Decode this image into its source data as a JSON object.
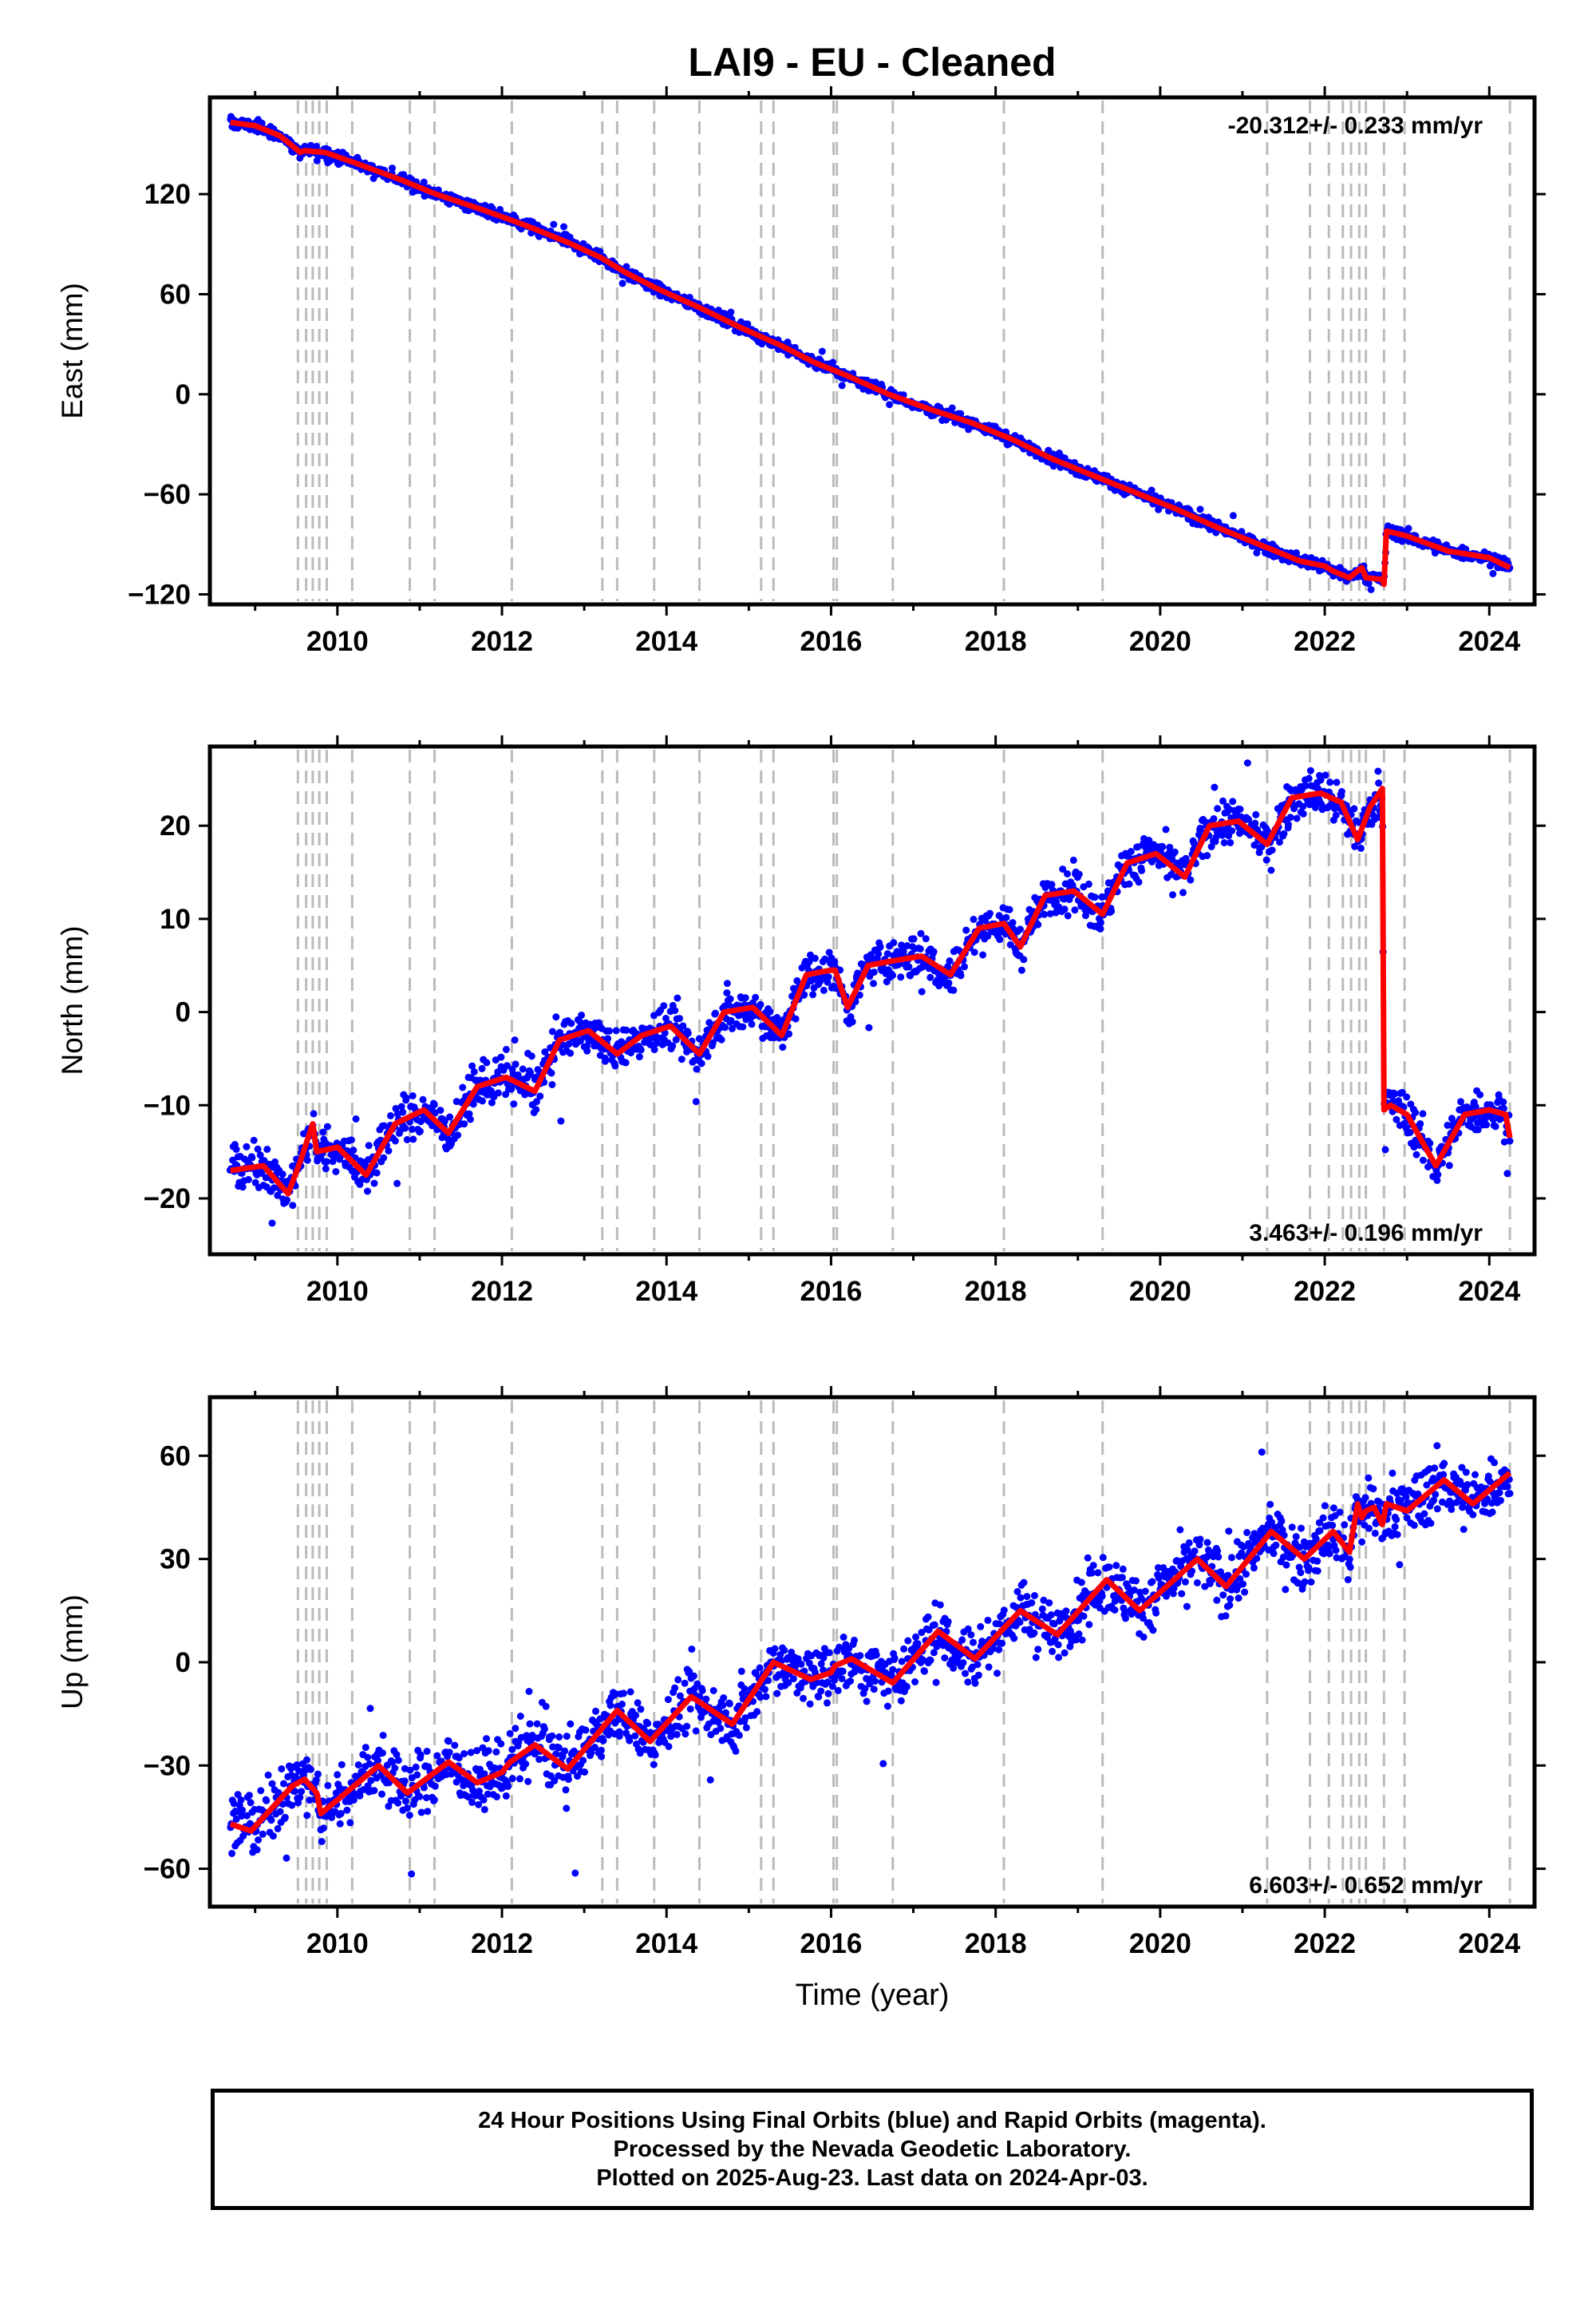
{
  "title": "LAI9  - EU - Cleaned",
  "xlabel": "Time (year)",
  "footer": {
    "line1": "24 Hour Positions Using Final Orbits (blue) and Rapid Orbits (magenta).",
    "line2": "Processed by the Nevada Geodetic Laboratory.",
    "line3": "Plotted on 2025-Aug-23. Last data on 2024-Apr-03."
  },
  "colors": {
    "data": "#0000ff",
    "model": "#ff0000",
    "events": "#bbbbbb",
    "frame": "#000000"
  },
  "chart_data": [
    {
      "type": "scatter",
      "id": "east",
      "ylabel": "East (mm)",
      "rate_label": "-20.312+/- 0.233 mm/yr",
      "rate_position": "top-right",
      "xlim": [
        2008.45,
        2024.55
      ],
      "ylim": [
        -126,
        178
      ],
      "xticks": [
        "2010",
        "2012",
        "2014",
        "2016",
        "2018",
        "2020",
        "2022",
        "2024"
      ],
      "yticks": [
        "120",
        "60",
        "0",
        "−60",
        "−120"
      ],
      "ytick_values": [
        120,
        60,
        0,
        -60,
        -120
      ],
      "series": [
        {
          "role": "data",
          "noise": 2.5,
          "x": [
            2008.7,
            2009.0,
            2009.3,
            2009.55,
            2009.6,
            2009.85,
            2010.2,
            2010.8,
            2011.2,
            2011.8,
            2012.3,
            2012.8,
            2013.2,
            2013.5,
            2013.9,
            2014.4,
            2014.9,
            2015.4,
            2015.8,
            2016.2,
            2016.7,
            2017.2,
            2017.7,
            2018.2,
            2018.7,
            2019.2,
            2019.7,
            2020.2,
            2020.7,
            2021.2,
            2021.7,
            2022.0,
            2022.1,
            2022.3,
            2022.45,
            2022.5,
            2022.7,
            2022.72,
            2022.75,
            2023.0,
            2023.5,
            2024.0,
            2024.25
          ],
          "y": [
            163,
            161,
            155,
            145,
            146,
            145,
            139,
            128,
            120,
            110,
            101,
            91,
            82,
            73,
            63,
            52,
            40,
            29,
            19,
            11,
            0,
            -9,
            -17,
            -27,
            -39,
            -49,
            -59,
            -69,
            -80,
            -90,
            -100,
            -103,
            -106,
            -110,
            -104,
            -110,
            -111,
            -114,
            -82,
            -85,
            -94,
            -98,
            -104
          ]
        }
      ],
      "model": {
        "x": [
          2008.7,
          2009.0,
          2009.3,
          2009.55,
          2009.6,
          2009.85,
          2010.2,
          2010.8,
          2011.2,
          2011.8,
          2012.3,
          2012.8,
          2013.2,
          2013.5,
          2013.9,
          2014.4,
          2014.9,
          2015.4,
          2015.8,
          2016.2,
          2016.7,
          2017.2,
          2017.7,
          2018.2,
          2018.7,
          2019.2,
          2019.7,
          2020.2,
          2020.7,
          2021.2,
          2021.7,
          2022.0,
          2022.1,
          2022.3,
          2022.45,
          2022.5,
          2022.7,
          2022.72,
          2022.75,
          2023.0,
          2023.5,
          2024.0,
          2024.25
        ],
        "y": [
          163,
          161,
          155,
          145,
          146,
          145,
          139,
          128,
          120,
          110,
          101,
          91,
          82,
          73,
          63,
          52,
          40,
          29,
          19,
          11,
          0,
          -9,
          -17,
          -27,
          -39,
          -49,
          -59,
          -69,
          -80,
          -90,
          -100,
          -103,
          -106,
          -110,
          -104,
          -110,
          -111,
          -114,
          -82,
          -85,
          -94,
          -98,
          -104
        ]
      }
    },
    {
      "type": "scatter",
      "id": "north",
      "ylabel": "North (mm)",
      "rate_label": "3.463+/- 0.196 mm/yr",
      "rate_position": "bottom-right",
      "xlim": [
        2008.45,
        2024.55
      ],
      "ylim": [
        -26,
        28.5
      ],
      "xticks": [
        "2010",
        "2012",
        "2014",
        "2016",
        "2018",
        "2020",
        "2022",
        "2024"
      ],
      "yticks": [
        "20",
        "10",
        "0",
        "−10",
        "−20"
      ],
      "ytick_values": [
        20,
        10,
        0,
        -10,
        -20
      ],
      "series": [
        {
          "role": "data",
          "noise": 1.6,
          "x": [
            2008.7,
            2009.1,
            2009.4,
            2009.55,
            2009.7,
            2009.75,
            2010.0,
            2010.35,
            2010.7,
            2011.05,
            2011.35,
            2011.7,
            2012.05,
            2012.4,
            2012.7,
            2013.05,
            2013.4,
            2013.7,
            2014.05,
            2014.4,
            2014.7,
            2015.05,
            2015.4,
            2015.7,
            2016.0,
            2016.05,
            2016.2,
            2016.45,
            2016.75,
            2017.1,
            2017.45,
            2017.8,
            2018.1,
            2018.3,
            2018.6,
            2018.95,
            2019.3,
            2019.6,
            2019.95,
            2020.3,
            2020.6,
            2020.95,
            2021.3,
            2021.6,
            2021.95,
            2022.2,
            2022.4,
            2022.55,
            2022.7,
            2022.72,
            2022.8,
            2023.0,
            2023.35,
            2023.7,
            2024.0,
            2024.2,
            2024.25
          ],
          "y": [
            -17,
            -16.5,
            -19.5,
            -16,
            -12,
            -15,
            -14.5,
            -17.5,
            -12,
            -10.5,
            -13,
            -8,
            -7,
            -8.5,
            -3,
            -2,
            -4.5,
            -2.5,
            -1.5,
            -4.5,
            0,
            0.5,
            -2.5,
            4,
            4.5,
            4.5,
            0.5,
            5,
            5.5,
            6,
            4,
            9,
            9.5,
            7,
            12.5,
            13,
            10.5,
            16,
            17,
            14.5,
            20,
            20.5,
            18,
            23,
            23.5,
            22.5,
            18.5,
            22,
            24,
            -10.5,
            -10,
            -11,
            -16.5,
            -11,
            -10.5,
            -11,
            -13.5
          ]
        }
      ],
      "model": {
        "x": [
          2008.7,
          2009.1,
          2009.4,
          2009.55,
          2009.7,
          2009.75,
          2010.0,
          2010.35,
          2010.7,
          2011.05,
          2011.35,
          2011.7,
          2012.05,
          2012.4,
          2012.7,
          2013.05,
          2013.4,
          2013.7,
          2014.05,
          2014.4,
          2014.7,
          2015.05,
          2015.4,
          2015.7,
          2016.0,
          2016.05,
          2016.2,
          2016.45,
          2016.75,
          2017.1,
          2017.45,
          2017.8,
          2018.1,
          2018.3,
          2018.6,
          2018.95,
          2019.3,
          2019.6,
          2019.95,
          2020.3,
          2020.6,
          2020.95,
          2021.3,
          2021.6,
          2021.95,
          2022.2,
          2022.4,
          2022.55,
          2022.7,
          2022.72,
          2022.8,
          2023.0,
          2023.35,
          2023.7,
          2024.0,
          2024.2,
          2024.25
        ],
        "y": [
          -17,
          -16.5,
          -19.5,
          -16,
          -12,
          -15,
          -14.5,
          -17.5,
          -12,
          -10.5,
          -13,
          -8,
          -7,
          -8.5,
          -3,
          -2,
          -4.5,
          -2.5,
          -1.5,
          -4.5,
          0,
          0.5,
          -2.5,
          4,
          4.5,
          4.5,
          0.5,
          5,
          5.5,
          6,
          4,
          9,
          9.5,
          7,
          12.5,
          13,
          10.5,
          16,
          17,
          14.5,
          20,
          20.5,
          18,
          23,
          23.5,
          22.5,
          18.5,
          22,
          24,
          -10.5,
          -10,
          -11,
          -16.5,
          -11,
          -10.5,
          -11,
          -13.5
        ]
      }
    },
    {
      "type": "scatter",
      "id": "up",
      "ylabel": "Up (mm)",
      "rate_label": "6.603+/- 0.652 mm/yr",
      "rate_position": "bottom-right",
      "xlim": [
        2008.45,
        2024.55
      ],
      "ylim": [
        -71,
        77
      ],
      "xticks": [
        "2010",
        "2012",
        "2014",
        "2016",
        "2018",
        "2020",
        "2022",
        "2024"
      ],
      "yticks": [
        "60",
        "30",
        "0",
        "−30",
        "−60"
      ],
      "ytick_values": [
        60,
        30,
        0,
        -30,
        -60
      ],
      "series": [
        {
          "role": "data",
          "noise": 6,
          "x": [
            2008.7,
            2008.95,
            2009.45,
            2009.6,
            2009.75,
            2009.8,
            2010.05,
            2010.5,
            2010.85,
            2011.35,
            2011.7,
            2012.0,
            2012.1,
            2012.4,
            2012.8,
            2013.4,
            2013.8,
            2014.3,
            2014.8,
            2015.3,
            2015.75,
            2016.0,
            2016.05,
            2016.25,
            2016.75,
            2017.3,
            2017.75,
            2018.3,
            2018.75,
            2019.35,
            2019.75,
            2020.45,
            2020.8,
            2021.35,
            2021.75,
            2022.1,
            2022.3,
            2022.4,
            2022.45,
            2022.5,
            2022.6,
            2022.7,
            2022.75,
            2023.0,
            2023.45,
            2023.8,
            2024.25
          ],
          "y": [
            -47,
            -49,
            -36,
            -34,
            -38,
            -44,
            -39,
            -30,
            -38,
            -29,
            -35,
            -32,
            -29,
            -24,
            -31,
            -14,
            -23,
            -10,
            -18,
            0,
            -5,
            -3,
            -1,
            1,
            -6,
            9,
            1,
            15,
            8,
            24,
            15,
            30,
            22,
            38,
            30,
            38,
            32,
            46,
            42,
            44,
            45,
            40,
            46,
            44,
            53,
            46,
            55
          ]
        }
      ],
      "model": {
        "x": [
          2008.7,
          2008.95,
          2009.45,
          2009.6,
          2009.75,
          2009.8,
          2010.05,
          2010.5,
          2010.85,
          2011.35,
          2011.7,
          2012.0,
          2012.1,
          2012.4,
          2012.8,
          2013.4,
          2013.8,
          2014.3,
          2014.8,
          2015.3,
          2015.75,
          2016.0,
          2016.05,
          2016.25,
          2016.75,
          2017.3,
          2017.75,
          2018.3,
          2018.75,
          2019.35,
          2019.75,
          2020.45,
          2020.8,
          2021.35,
          2021.75,
          2022.1,
          2022.3,
          2022.4,
          2022.45,
          2022.5,
          2022.6,
          2022.7,
          2022.75,
          2023.0,
          2023.45,
          2023.8,
          2024.25
        ],
        "y": [
          -47,
          -49,
          -36,
          -34,
          -38,
          -44,
          -39,
          -30,
          -38,
          -29,
          -35,
          -32,
          -29,
          -24,
          -31,
          -14,
          -23,
          -10,
          -18,
          0,
          -5,
          -3,
          -1,
          1,
          -6,
          9,
          1,
          15,
          8,
          24,
          15,
          30,
          22,
          38,
          30,
          38,
          32,
          46,
          42,
          44,
          45,
          40,
          46,
          44,
          53,
          46,
          55
        ]
      }
    }
  ],
  "event_lines": [
    2009.52,
    2009.62,
    2009.7,
    2009.78,
    2009.87,
    2010.18,
    2010.88,
    2011.18,
    2012.12,
    2013.22,
    2013.4,
    2013.85,
    2014.4,
    2015.15,
    2015.3,
    2016.03,
    2016.07,
    2016.75,
    2018.1,
    2019.3,
    2021.3,
    2021.82,
    2022.05,
    2022.22,
    2022.32,
    2022.42,
    2022.5,
    2022.72,
    2022.97,
    2024.25
  ]
}
